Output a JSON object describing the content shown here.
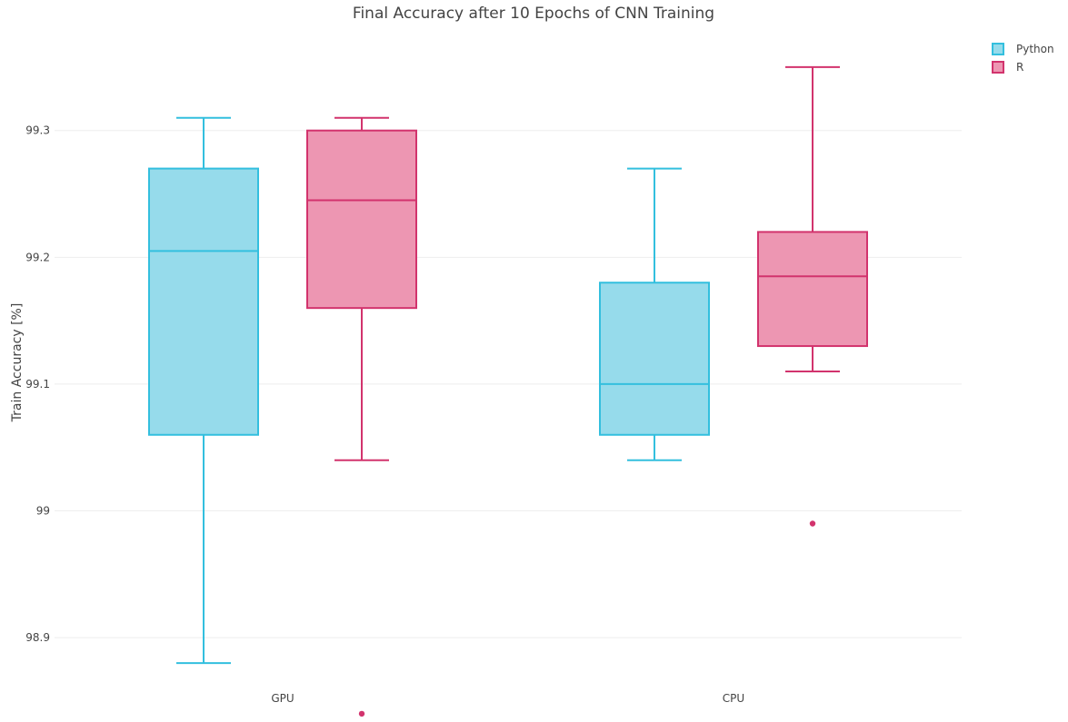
{
  "chart_data": {
    "type": "box",
    "title": "Final Accuracy after 10 Epochs of CNN Training",
    "xlabel": "",
    "ylabel": "Train Accuracy [%]",
    "categories": [
      "GPU",
      "CPU"
    ],
    "ylim": [
      98.86,
      99.375
    ],
    "yticks": [
      98.9,
      99,
      99.1,
      99.2,
      99.3
    ],
    "ytick_labels": [
      "98.9",
      "99",
      "99.1",
      "99.2",
      "99.3"
    ],
    "grid": true,
    "legend_position": "top-right",
    "series": [
      {
        "name": "Python",
        "line_color": "#33bfde",
        "fill_color": "#96dbeb",
        "boxes": [
          {
            "category": "GPU",
            "lower_whisker": 98.88,
            "q1": 99.06,
            "median": 99.205,
            "q3": 99.27,
            "upper_whisker": 99.31,
            "outliers": []
          },
          {
            "category": "CPU",
            "lower_whisker": 99.04,
            "q1": 99.06,
            "median": 99.1,
            "q3": 99.18,
            "upper_whisker": 99.27,
            "outliers": []
          }
        ]
      },
      {
        "name": "R",
        "line_color": "#d2336d",
        "fill_color": "#ed96b2",
        "boxes": [
          {
            "category": "GPU",
            "lower_whisker": 99.04,
            "q1": 99.16,
            "median": 99.245,
            "q3": 99.3,
            "upper_whisker": 99.31,
            "outliers": [
              98.84
            ]
          },
          {
            "category": "CPU",
            "lower_whisker": 99.11,
            "q1": 99.13,
            "median": 99.185,
            "q3": 99.22,
            "upper_whisker": 99.35,
            "outliers": [
              98.99
            ]
          }
        ]
      }
    ]
  }
}
